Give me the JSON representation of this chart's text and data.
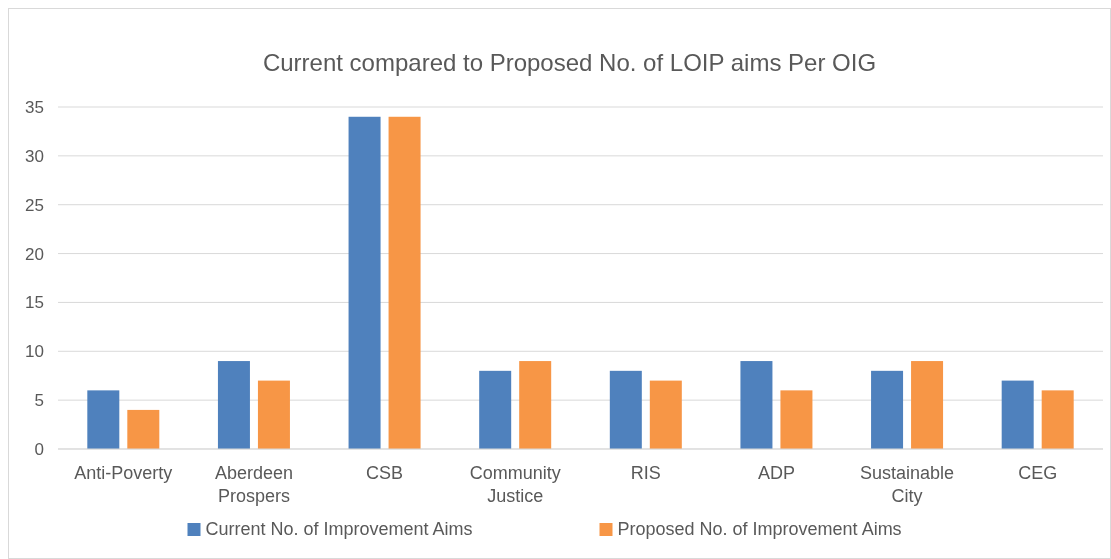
{
  "chart_data": {
    "type": "bar",
    "title": "Current compared to Proposed No. of LOIP aims Per OIG",
    "categories": [
      "Anti-Poverty",
      "Aberdeen Prospers",
      "CSB",
      "Community Justice",
      "RIS",
      "ADP",
      "Sustainable City",
      "CEG"
    ],
    "series": [
      {
        "name": "Current No. of Improvement Aims",
        "color": "#4f81bd",
        "values": [
          6,
          9,
          34,
          8,
          8,
          9,
          8,
          7
        ]
      },
      {
        "name": "Proposed No. of Improvement Aims",
        "color": "#f79646",
        "values": [
          4,
          7,
          34,
          9,
          7,
          6,
          9,
          6
        ]
      }
    ],
    "ylim": [
      0,
      35
    ],
    "yticks": [
      0,
      5,
      10,
      15,
      20,
      25,
      30,
      35
    ],
    "grid": "y",
    "legend": "bottom"
  }
}
